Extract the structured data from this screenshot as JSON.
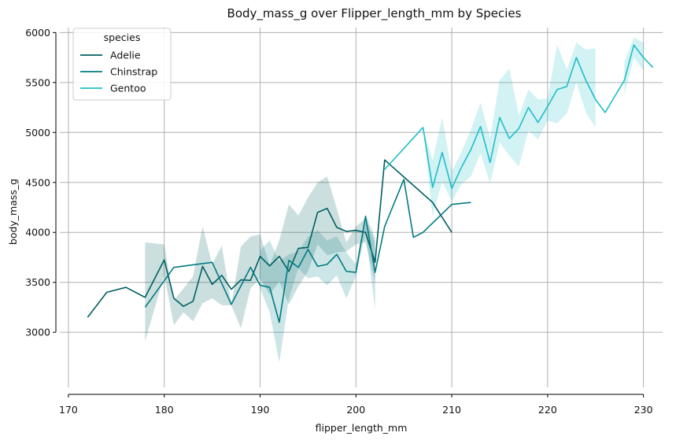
{
  "chart_data": {
    "type": "line",
    "title": "Body_mass_g over Flipper_length_mm by Species",
    "xlabel": "flipper_length_mm",
    "ylabel": "body_mass_g",
    "xlim": [
      169.1,
      232.0
    ],
    "ylim": [
      2450,
      6050
    ],
    "xticks": [
      170,
      180,
      190,
      200,
      210,
      220,
      230
    ],
    "yticks": [
      3000,
      3500,
      4000,
      4500,
      5000,
      5500,
      6000
    ],
    "grid": true,
    "legend": {
      "title": "species",
      "placement": "top-left"
    },
    "series": [
      {
        "name": "Adelie",
        "color": "#005f60",
        "x": [
          172,
          174,
          176,
          178,
          180,
          181,
          182,
          183,
          184,
          185,
          186,
          187,
          188,
          189,
          190,
          191,
          192,
          193,
          194,
          195,
          196,
          197,
          198,
          199,
          200,
          201,
          202,
          203,
          208,
          210
        ],
        "y": [
          3150,
          3400,
          3450,
          3350,
          3725,
          3340,
          3260,
          3310,
          3660,
          3480,
          3570,
          3430,
          3525,
          3520,
          3760,
          3665,
          3760,
          3610,
          3840,
          3850,
          4200,
          4240,
          4050,
          4010,
          4020,
          4000,
          3700,
          4725,
          4300,
          4000
        ],
        "band_upper": [
          null,
          null,
          null,
          3900,
          3880,
          3320,
          3440,
          3560,
          4060,
          3680,
          3870,
          3280,
          3860,
          3960,
          3980,
          3670,
          3920,
          4280,
          4170,
          4350,
          4500,
          4560,
          4240,
          3900,
          4060,
          4140,
          3900,
          null,
          null,
          null
        ],
        "band_lower": [
          null,
          null,
          null,
          2910,
          3570,
          3070,
          3200,
          3110,
          3290,
          3340,
          3270,
          3270,
          3040,
          3440,
          3540,
          3380,
          3510,
          3280,
          3460,
          3610,
          3880,
          3770,
          3800,
          3810,
          3880,
          3900,
          3500,
          null,
          null,
          null
        ]
      },
      {
        "name": "Chinstrap",
        "color": "#007b82",
        "x": [
          178,
          181,
          185,
          187,
          189,
          190,
          191,
          192,
          193,
          194,
          195,
          196,
          197,
          198,
          199,
          200,
          201,
          202,
          203,
          205,
          206,
          207,
          210,
          212
        ],
        "y": [
          3250,
          3650,
          3700,
          3280,
          3650,
          3470,
          3450,
          3100,
          3720,
          3650,
          3830,
          3660,
          3680,
          3780,
          3610,
          3600,
          4160,
          3600,
          4060,
          4530,
          3950,
          4000,
          4280,
          4300
        ],
        "band_upper": [
          null,
          null,
          null,
          null,
          null,
          3820,
          3920,
          3710,
          3780,
          3810,
          3960,
          4020,
          3920,
          3960,
          3800,
          3680,
          4180,
          3950,
          null,
          null,
          null,
          null,
          null,
          null
        ],
        "band_lower": [
          null,
          null,
          null,
          null,
          null,
          3440,
          3200,
          2700,
          3340,
          3640,
          3540,
          3560,
          3470,
          3570,
          3340,
          3560,
          4000,
          3230,
          null,
          null,
          null,
          null,
          null,
          null
        ]
      },
      {
        "name": "Gentoo",
        "color": "#20bec8",
        "x": [
          203,
          207,
          208,
          209,
          210,
          211,
          212,
          213,
          214,
          215,
          216,
          217,
          218,
          219,
          220,
          221,
          222,
          223,
          224,
          225,
          226,
          228,
          229,
          230,
          231
        ],
        "y": [
          4630,
          5050,
          4450,
          4800,
          4440,
          4650,
          4830,
          5060,
          4700,
          5150,
          4940,
          5040,
          5250,
          5100,
          5260,
          5430,
          5460,
          5750,
          5520,
          5330,
          5200,
          5520,
          5875,
          5750,
          5650
        ],
        "band_upper": [
          null,
          5050,
          4720,
          5150,
          4610,
          4800,
          5030,
          5300,
          4950,
          5520,
          5640,
          5170,
          5430,
          5330,
          5340,
          5880,
          5630,
          5900,
          5830,
          5840,
          null,
          5700,
          5950,
          5900,
          null
        ],
        "band_lower": [
          null,
          5050,
          4160,
          4510,
          4310,
          4480,
          4560,
          4790,
          4490,
          4900,
          4770,
          4660,
          5020,
          4930,
          5120,
          5090,
          5190,
          5500,
          5200,
          5050,
          null,
          5380,
          5750,
          5620,
          null
        ]
      }
    ]
  }
}
